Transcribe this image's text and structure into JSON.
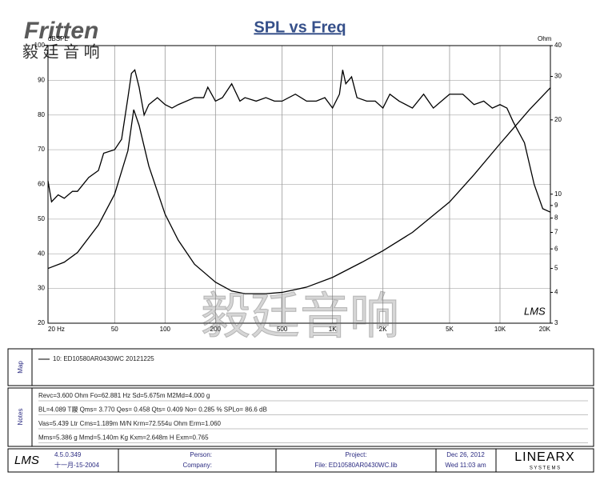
{
  "header": {
    "logo": "Fritten",
    "logo_cn": "毅 廷 音 响",
    "watermark": "毅廷音响",
    "plot_mark": "LMS"
  },
  "chart_data": {
    "type": "line",
    "title": "SPL vs Freq",
    "ylabel": "dBSPL",
    "y2label": "Ohm",
    "xscale": "log",
    "xlim": [
      20,
      20000
    ],
    "xticks": [
      {
        "value": 20,
        "label": "20 Hz"
      },
      50,
      100,
      200,
      500,
      {
        "value": 1000,
        "label": "1K"
      },
      {
        "value": 2000,
        "label": "2K"
      },
      {
        "value": 5000,
        "label": "5K"
      },
      {
        "value": 10000,
        "label": "10K"
      },
      {
        "value": 20000,
        "label": "20K"
      }
    ],
    "ylim": [
      20,
      100
    ],
    "yticks": [
      20,
      30,
      40,
      50,
      60,
      70,
      80,
      90,
      100
    ],
    "y2scale": "log",
    "y2lim": [
      3,
      40
    ],
    "y2ticks": [
      3,
      4,
      5,
      6,
      7,
      8,
      9,
      10,
      20,
      30,
      40
    ],
    "grid": true,
    "series": [
      {
        "name": "10: ED10580AR0430WC 20121225",
        "color": "#000000",
        "x": [
          20,
          21,
          23,
          25,
          28,
          30,
          35,
          40,
          43,
          50,
          55,
          60,
          63,
          66,
          70,
          75,
          80,
          90,
          100,
          110,
          120,
          150,
          170,
          180,
          200,
          220,
          250,
          280,
          300,
          350,
          400,
          450,
          500,
          600,
          700,
          800,
          900,
          1000,
          1100,
          1150,
          1200,
          1300,
          1400,
          1600,
          1800,
          2000,
          2200,
          2500,
          3000,
          3500,
          4000,
          5000,
          6000,
          7000,
          8000,
          9000,
          10000,
          11000,
          12000,
          14000,
          16000,
          18000,
          20000
        ],
        "values": [
          61,
          55,
          57,
          56,
          58,
          58,
          62,
          64,
          69,
          70,
          73,
          85,
          92,
          93,
          88,
          80,
          83,
          85,
          83,
          82,
          83,
          85,
          85,
          88,
          84,
          85,
          89,
          84,
          85,
          84,
          85,
          84,
          84,
          86,
          84,
          84,
          85,
          82,
          86,
          93,
          89,
          91,
          85,
          84,
          84,
          82,
          86,
          84,
          82,
          86,
          82,
          86,
          86,
          83,
          84,
          82,
          83,
          82,
          78,
          72,
          60,
          53,
          52
        ]
      },
      {
        "axis": "y2",
        "color": "#000000",
        "x": [
          20,
          25,
          30,
          40,
          50,
          60,
          65,
          70,
          80,
          100,
          120,
          150,
          200,
          250,
          300,
          400,
          500,
          700,
          1000,
          1500,
          2000,
          3000,
          5000,
          7000,
          10000,
          15000,
          20000
        ],
        "values": [
          5.0,
          5.3,
          5.8,
          7.5,
          10,
          15,
          22,
          19,
          13,
          8.3,
          6.5,
          5.2,
          4.4,
          4.05,
          3.95,
          3.95,
          4.0,
          4.2,
          4.6,
          5.3,
          5.9,
          7.0,
          9.3,
          12,
          16,
          22,
          27
        ]
      }
    ]
  },
  "panels": {
    "map_label": "Map",
    "notes_label": "Notes",
    "notes": [
      "Revc=3.600 Ohm Fo=62.881 Hz Sd=5.675m M2Md=4.000 g",
      "BL=4.089 T鬷 Qms= 3.770 Qes= 0.458 Qts= 0.409 No= 0.285 % SPLo= 86.6 dB",
      "Vas=5.439 Ltr Cms=1.189m M/N Krm=72.554u Ohm Erm=1.060",
      "Mms=5.386 g Mmd=5.140m Kg Kxm=2.648m H Exm=0.765"
    ]
  },
  "footer": {
    "logo": "LMS",
    "version": "4.5.0.349",
    "build_date": "十一月-15-2004",
    "person": "Person:",
    "company": "Company:",
    "project": "Project:",
    "file": "File: ED10580AR0430WC.lib",
    "date": "Dec 26, 2012",
    "time": "Wed 11:03 am",
    "brand": "LINEARX",
    "brand_sub": "S Y S T E M S"
  }
}
